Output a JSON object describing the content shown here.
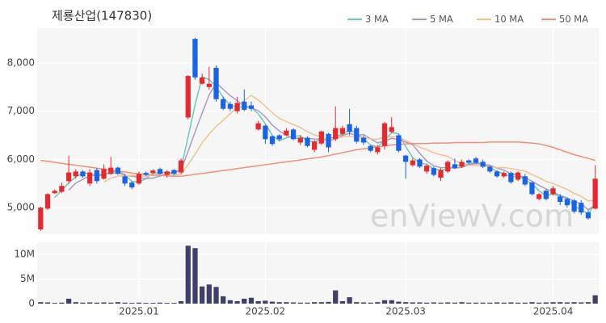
{
  "chart_data": [
    {
      "type": "candlestick",
      "title": "제룡산업(147830)",
      "watermark": "enViewV.com",
      "up_color": "#e42a2e",
      "down_color": "#1a62e6",
      "legend": "top-right",
      "grid": true,
      "ylim": [
        4450,
        8720
      ],
      "yticks": [
        {
          "value": 5000,
          "label": "5,000"
        },
        {
          "value": 6000,
          "label": "6,000"
        },
        {
          "value": 7000,
          "label": "7,000"
        },
        {
          "value": 8000,
          "label": "8,000"
        }
      ],
      "open": [
        4550,
        4980,
        5300,
        5330,
        5550,
        5650,
        5750,
        5500,
        5780,
        5600,
        5700,
        5830,
        5650,
        5520,
        5500,
        5720,
        5720,
        5800,
        5680,
        5780,
        5730,
        6870,
        8500,
        7570,
        7500,
        7900,
        7250,
        7150,
        7000,
        7200,
        7120,
        6620,
        6700,
        6480,
        6500,
        6500,
        6620,
        6350,
        6450,
        6200,
        6330,
        6530,
        6420,
        6530,
        6730,
        6650,
        6450,
        6280,
        6150,
        6280,
        6570,
        6500,
        6080,
        5880,
        6000,
        5750,
        5820,
        5620,
        5750,
        5900,
        5850,
        5980,
        6020,
        5950,
        5850,
        5750,
        5650,
        5720,
        5580,
        5650,
        5520,
        5180,
        5350,
        5280,
        5230,
        5180,
        5150,
        5100,
        4900,
        4980
      ],
      "high": [
        5020,
        5300,
        5380,
        5520,
        6080,
        5800,
        5780,
        5800,
        5820,
        5900,
        6050,
        5850,
        5700,
        5550,
        5750,
        5750,
        5800,
        5830,
        5780,
        5800,
        6020,
        7750,
        8520,
        7780,
        7920,
        7950,
        7300,
        7200,
        7300,
        7450,
        7200,
        6800,
        6720,
        6500,
        6520,
        6650,
        6650,
        6500,
        6480,
        6400,
        6600,
        6550,
        7100,
        6700,
        7050,
        6700,
        6500,
        6300,
        6300,
        6780,
        6880,
        6520,
        6100,
        6020,
        6030,
        5900,
        5850,
        5820,
        5980,
        6020,
        6000,
        6000,
        6050,
        6000,
        5870,
        5780,
        5750,
        5750,
        5750,
        5700,
        5550,
        5300,
        5380,
        5450,
        5280,
        5200,
        5180,
        5150,
        4950,
        5880
      ],
      "low": [
        4520,
        4950,
        5280,
        5300,
        5500,
        5600,
        5620,
        5450,
        5500,
        5580,
        5680,
        5680,
        5450,
        5380,
        5480,
        5650,
        5700,
        5680,
        5620,
        5680,
        5700,
        6830,
        7650,
        7550,
        7450,
        7200,
        7020,
        7000,
        6950,
        7000,
        7000,
        6600,
        6320,
        6280,
        6380,
        6480,
        6400,
        6300,
        6250,
        6150,
        6300,
        6150,
        6380,
        6500,
        6500,
        6330,
        6300,
        6150,
        6100,
        6200,
        6550,
        6150,
        5600,
        5850,
        5820,
        5700,
        5650,
        5550,
        5720,
        5800,
        5820,
        5900,
        5900,
        5820,
        5720,
        5620,
        5620,
        5500,
        5550,
        5450,
        5250,
        5150,
        5150,
        5250,
        5050,
        5000,
        4880,
        4850,
        4750,
        4970
      ],
      "close": [
        5000,
        5280,
        5350,
        5450,
        5730,
        5750,
        5650,
        5730,
        5550,
        5800,
        5830,
        5700,
        5500,
        5420,
        5700,
        5680,
        5770,
        5700,
        5750,
        5700,
        5980,
        7730,
        7700,
        7700,
        7570,
        7250,
        7050,
        7050,
        7170,
        7030,
        7050,
        6750,
        6420,
        6320,
        6420,
        6600,
        6420,
        6450,
        6280,
        6370,
        6580,
        6250,
        6650,
        6650,
        6570,
        6370,
        6350,
        6180,
        6250,
        6750,
        6670,
        6180,
        5950,
        5980,
        5850,
        5870,
        5680,
        5780,
        5950,
        5820,
        5950,
        5930,
        5930,
        5850,
        5750,
        5650,
        5720,
        5530,
        5730,
        5480,
        5280,
        5280,
        5180,
        5400,
        5120,
        5050,
        4920,
        4900,
        4780,
        5600
      ],
      "series": [
        {
          "name": "3 MA",
          "color": "#6cc9b7",
          "values": [
            null,
            null,
            5210,
            5360,
            5510,
            5643,
            5710,
            5710,
            5643,
            5693,
            5727,
            5777,
            5677,
            5540,
            5540,
            5600,
            5717,
            5717,
            5740,
            5717,
            5810,
            6470,
            7137,
            7710,
            7657,
            7507,
            7290,
            7117,
            7090,
            7083,
            7083,
            6943,
            6740,
            6497,
            6387,
            6447,
            6480,
            6490,
            6383,
            6367,
            6410,
            6400,
            6493,
            6517,
            6623,
            6530,
            6430,
            6300,
            6260,
            6393,
            6557,
            6533,
            6267,
            6037,
            5927,
            5900,
            5800,
            5777,
            5803,
            5850,
            5907,
            5900,
            5937,
            5903,
            5843,
            5750,
            5707,
            5633,
            5660,
            5580,
            5497,
            5347,
            5247,
            5287,
            5233,
            5190,
            5030,
            4957,
            4867,
            5093
          ]
        },
        {
          "name": "5 MA",
          "color": "#a99bc0",
          "values": [
            null,
            null,
            null,
            null,
            5362,
            5512,
            5586,
            5662,
            5682,
            5696,
            5712,
            5722,
            5676,
            5650,
            5630,
            5600,
            5614,
            5654,
            5720,
            5720,
            5780,
            6172,
            6572,
            6962,
            7336,
            7590,
            7454,
            7324,
            7218,
            7110,
            7070,
            7010,
            6884,
            6714,
            6592,
            6502,
            6436,
            6442,
            6434,
            6424,
            6420,
            6386,
            6426,
            6500,
            6540,
            6498,
            6518,
            6424,
            6344,
            6380,
            6440,
            6406,
            6360,
            6306,
            6126,
            5966,
            5866,
            5832,
            5826,
            5820,
            5836,
            5886,
            5916,
            5896,
            5882,
            5822,
            5780,
            5700,
            5676,
            5622,
            5548,
            5460,
            5390,
            5324,
            5252,
            5206,
            5134,
            5080,
            4956,
            5052
          ]
        },
        {
          "name": "10 MA",
          "color": "#f0c38e",
          "values": [
            null,
            null,
            null,
            null,
            null,
            null,
            null,
            null,
            null,
            5529,
            5612,
            5654,
            5669,
            5666,
            5663,
            5656,
            5668,
            5665,
            5685,
            5675,
            5690,
            5893,
            6113,
            6341,
            6528,
            6685,
            6813,
            6948,
            7090,
            7223,
            7330,
            7232,
            7104,
            6966,
            6851,
            6786,
            6723,
            6663,
            6574,
            6508,
            6461,
            6411,
            6434,
            6467,
            6482,
            6459,
            6452,
            6425,
            6422,
            6460,
            6469,
            6462,
            6392,
            6325,
            6253,
            6203,
            6136,
            6096,
            6066,
            5973,
            5901,
            5876,
            5874,
            5861,
            5851,
            5829,
            5833,
            5808,
            5786,
            5752,
            5685,
            5620,
            5545,
            5500,
            5437,
            5377,
            5297,
            5235,
            5140,
            5152
          ]
        },
        {
          "name": "50 MA",
          "color": "#f0907a",
          "values": [
            5980,
            5960,
            5940,
            5920,
            5900,
            5880,
            5860,
            5840,
            5820,
            5800,
            5780,
            5760,
            5740,
            5720,
            5700,
            5690,
            5680,
            5670,
            5660,
            5650,
            5650,
            5670,
            5690,
            5710,
            5730,
            5750,
            5770,
            5790,
            5810,
            5830,
            5850,
            5870,
            5890,
            5910,
            5930,
            5950,
            5970,
            5990,
            6010,
            6030,
            6050,
            6080,
            6110,
            6140,
            6170,
            6200,
            6220,
            6240,
            6260,
            6280,
            6300,
            6310,
            6320,
            6330,
            6330,
            6330,
            6340,
            6340,
            6340,
            6350,
            6350,
            6350,
            6350,
            6350,
            6360,
            6360,
            6360,
            6360,
            6360,
            6350,
            6340,
            6320,
            6290,
            6250,
            6200,
            6150,
            6100,
            6060,
            6020,
            5980
          ]
        }
      ]
    },
    {
      "type": "bar",
      "color": "#3f3f6b",
      "grid": true,
      "ylim": [
        0,
        12500000
      ],
      "yticks": [
        0,
        {
          "value": 5000000,
          "label": "5M"
        },
        {
          "value": 10000000,
          "label": "10M"
        }
      ],
      "categories": [
        null,
        null,
        null,
        null,
        null,
        null,
        null,
        null,
        null,
        null,
        null,
        null,
        null,
        null,
        "2025.01",
        null,
        null,
        null,
        null,
        null,
        null,
        null,
        null,
        null,
        null,
        null,
        null,
        null,
        null,
        null,
        null,
        null,
        "2025.02",
        null,
        null,
        null,
        null,
        null,
        null,
        null,
        null,
        null,
        null,
        null,
        null,
        null,
        null,
        null,
        null,
        null,
        null,
        null,
        "2025.03",
        null,
        null,
        null,
        null,
        null,
        null,
        null,
        null,
        null,
        null,
        null,
        null,
        null,
        null,
        null,
        null,
        null,
        null,
        null,
        null,
        "2025.04",
        null,
        null,
        null,
        null,
        null,
        null
      ],
      "values": [
        300000,
        250000,
        150000,
        200000,
        1000000,
        300000,
        200000,
        250000,
        200000,
        250000,
        200000,
        300000,
        200000,
        150000,
        200000,
        150000,
        150000,
        200000,
        150000,
        150000,
        500000,
        11800000,
        11300000,
        3500000,
        3900000,
        3400000,
        1500000,
        700000,
        500000,
        1000000,
        1200000,
        500000,
        600000,
        400000,
        300000,
        300000,
        250000,
        200000,
        200000,
        300000,
        300000,
        350000,
        2700000,
        500000,
        1300000,
        300000,
        250000,
        200000,
        300000,
        700000,
        700000,
        400000,
        300000,
        250000,
        250000,
        200000,
        250000,
        200000,
        250000,
        200000,
        300000,
        200000,
        200000,
        200000,
        200000,
        250000,
        200000,
        250000,
        200000,
        200000,
        300000,
        200000,
        250000,
        300000,
        300000,
        250000,
        300000,
        250000,
        300000,
        1700000
      ]
    }
  ]
}
